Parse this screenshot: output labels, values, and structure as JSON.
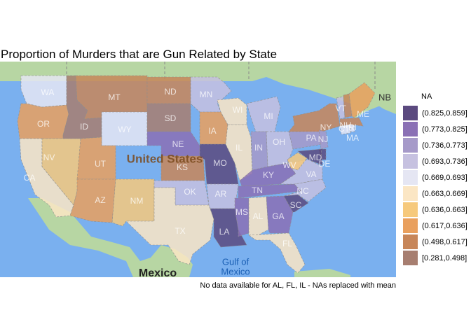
{
  "title": "Proportion of Murders that are Gun Related by State",
  "caption": "No data available for AL, FL, IL - NAs replaced with mean",
  "legend": {
    "title": "NA",
    "items": [
      {
        "label": "(0.825,0.859]",
        "color": "#5b4a7f"
      },
      {
        "label": "(0.773,0.825]",
        "color": "#8a70b5"
      },
      {
        "label": "(0.736,0.773]",
        "color": "#a69ac9"
      },
      {
        "label": "(0.693,0.736]",
        "color": "#c6c1e0"
      },
      {
        "label": "(0.669,0.693]",
        "color": "#e5e6f3"
      },
      {
        "label": "(0.663,0.669]",
        "color": "#fbe6c4"
      },
      {
        "label": "(0.636,0.663]",
        "color": "#f6c97c"
      },
      {
        "label": "(0.617,0.636]",
        "color": "#e9a05e"
      },
      {
        "label": "(0.498,0.617]",
        "color": "#c78659"
      },
      {
        "label": "[0.281,0.498]",
        "color": "#a77e70"
      }
    ]
  },
  "basemap": {
    "country_label": "United States",
    "neighbor_label": "Mexico",
    "gulf_label_1": "Gulf of",
    "gulf_label_2": "Mexico",
    "nb_label": "NB",
    "land_color": "#b7d6a3",
    "water_color": "#7ab0ef"
  },
  "states": [
    {
      "abbr": "WA",
      "bin": 4
    },
    {
      "abbr": "OR",
      "bin": 7
    },
    {
      "abbr": "CA",
      "bin": 5
    },
    {
      "abbr": "NV",
      "bin": 6
    },
    {
      "abbr": "ID",
      "bin": 9
    },
    {
      "abbr": "MT",
      "bin": 8
    },
    {
      "abbr": "WY",
      "bin": 4
    },
    {
      "abbr": "UT",
      "bin": 7
    },
    {
      "abbr": "AZ",
      "bin": 7
    },
    {
      "abbr": "NM",
      "bin": 6
    },
    {
      "abbr": "ND",
      "bin": 8
    },
    {
      "abbr": "SD",
      "bin": 9
    },
    {
      "abbr": "NE",
      "bin": 1
    },
    {
      "abbr": "KS",
      "bin": 8
    },
    {
      "abbr": "OK",
      "bin": 3
    },
    {
      "abbr": "TX",
      "bin": 5
    },
    {
      "abbr": "MN",
      "bin": 3
    },
    {
      "abbr": "IA",
      "bin": 7
    },
    {
      "abbr": "MO",
      "bin": 0
    },
    {
      "abbr": "AR",
      "bin": 3
    },
    {
      "abbr": "LA",
      "bin": 0
    },
    {
      "abbr": "WI",
      "bin": 5
    },
    {
      "abbr": "IL",
      "bin": 5
    },
    {
      "abbr": "MI",
      "bin": 3
    },
    {
      "abbr": "IN",
      "bin": 2
    },
    {
      "abbr": "OH",
      "bin": 3
    },
    {
      "abbr": "KY",
      "bin": 1
    },
    {
      "abbr": "TN",
      "bin": 1
    },
    {
      "abbr": "MS",
      "bin": 1
    },
    {
      "abbr": "AL",
      "bin": 5
    },
    {
      "abbr": "GA",
      "bin": 1
    },
    {
      "abbr": "FL",
      "bin": 5
    },
    {
      "abbr": "SC",
      "bin": 0
    },
    {
      "abbr": "NC",
      "bin": 3
    },
    {
      "abbr": "VA",
      "bin": 3
    },
    {
      "abbr": "WV",
      "bin": 6
    },
    {
      "abbr": "PA",
      "bin": 2
    },
    {
      "abbr": "NY",
      "bin": 8
    },
    {
      "abbr": "NJ",
      "bin": 2
    },
    {
      "abbr": "DE",
      "bin": 0
    },
    {
      "abbr": "MD",
      "bin": 0
    },
    {
      "abbr": "CT",
      "bin": 4
    },
    {
      "abbr": "RI",
      "bin": 4
    },
    {
      "abbr": "MA",
      "bin": 8
    },
    {
      "abbr": "VT",
      "bin": 3
    },
    {
      "abbr": "NH",
      "bin": 8
    },
    {
      "abbr": "ME",
      "bin": 7
    }
  ]
}
